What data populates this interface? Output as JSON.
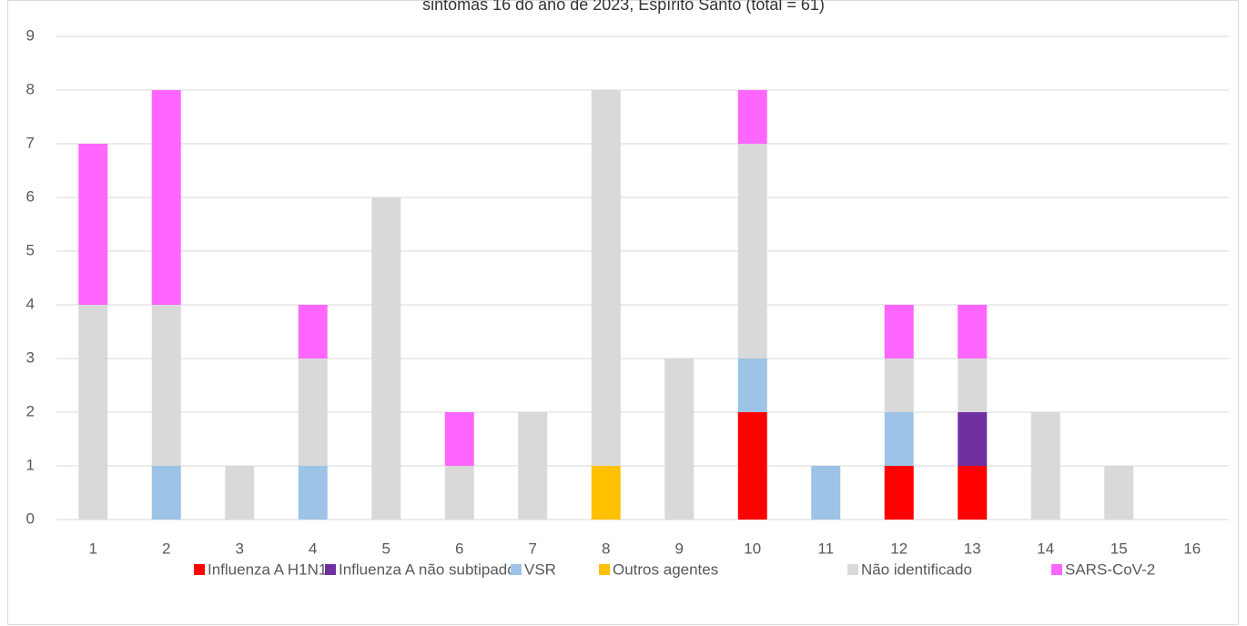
{
  "chart_data": {
    "type": "stacked_bar",
    "title": "sintomas 16 do ano de 2023, Espírito Santo (total = 61)",
    "categories": [
      "1",
      "2",
      "3",
      "4",
      "5",
      "6",
      "7",
      "8",
      "9",
      "10",
      "11",
      "12",
      "13",
      "14",
      "15",
      "16"
    ],
    "series": [
      {
        "name": "Influenza A H1N1",
        "color": "#ff0000",
        "values": [
          0,
          0,
          0,
          0,
          0,
          0,
          0,
          0,
          0,
          2,
          0,
          1,
          1,
          0,
          0,
          0
        ]
      },
      {
        "name": "Influenza A não subtipado",
        "color": "#7030a0",
        "values": [
          0,
          0,
          0,
          0,
          0,
          0,
          0,
          0,
          0,
          0,
          0,
          0,
          1,
          0,
          0,
          0
        ]
      },
      {
        "name": "VSR",
        "color": "#9dc3e6",
        "values": [
          0,
          1,
          0,
          1,
          0,
          0,
          0,
          0,
          0,
          1,
          1,
          1,
          0,
          0,
          0,
          0
        ]
      },
      {
        "name": "Outros agentes",
        "color": "#ffc000",
        "values": [
          0,
          0,
          0,
          0,
          0,
          0,
          0,
          1,
          0,
          0,
          0,
          0,
          0,
          0,
          0,
          0
        ]
      },
      {
        "name": "Não identificado",
        "color": "#d9d9d9",
        "values": [
          4,
          3,
          1,
          2,
          6,
          1,
          2,
          7,
          3,
          4,
          0,
          1,
          1,
          2,
          1,
          0
        ]
      },
      {
        "name": "SARS-CoV-2",
        "color": "#ff66ff",
        "values": [
          3,
          4,
          0,
          1,
          0,
          1,
          0,
          0,
          0,
          1,
          0,
          1,
          1,
          0,
          0,
          0
        ]
      }
    ],
    "ylim": [
      0,
      9
    ],
    "yticks": [
      0,
      1,
      2,
      3,
      4,
      5,
      6,
      7,
      8,
      9
    ],
    "grid": true,
    "legend": "bottom"
  }
}
